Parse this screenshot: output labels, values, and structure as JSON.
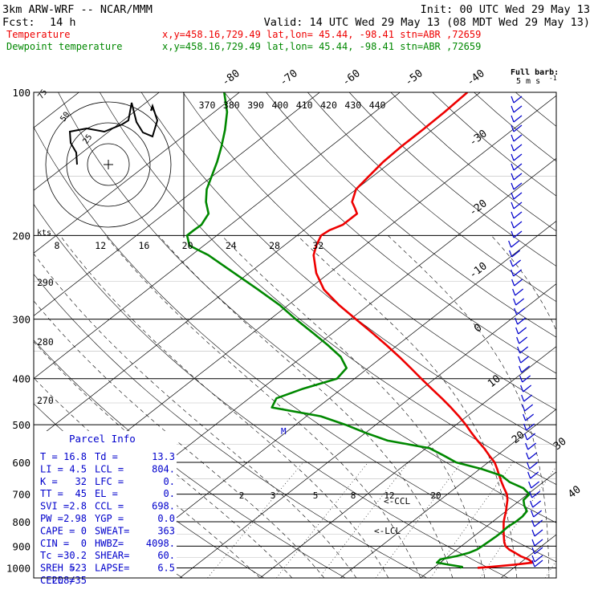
{
  "header": {
    "model": "3km ARW-WRF -- NCAR/MMM",
    "init": "Init: 00 UTC Wed 29 May 13",
    "fcst_label": "Fcst:",
    "fcst_value": "14 h",
    "valid": "Valid: 14 UTC Wed 29 May 13 (08 MDT Wed 29 May 13)",
    "temp_label": "Temperature",
    "temp_loc": "x,y=458.16,729.49   lat,lon= 45.44, -98.41   stn=ABR ,72659",
    "dew_label": "Dewpoint temperature",
    "dew_loc": "x,y=458.16,729.49   lat,lon= 45.44, -98.41   stn=ABR ,72659"
  },
  "colors": {
    "temperature": "#ee0000",
    "dewpoint": "#008800",
    "wind": "#0000cc",
    "frame": "#000000"
  },
  "wind_legend": {
    "title": "Full barb:",
    "units": "5 m s",
    "exp": "-1"
  },
  "parcel": {
    "title": "Parcel Info",
    "rows": [
      {
        "l1": "T  =",
        "v1": "16.8",
        "l2": "Td =",
        "v2": "13.3"
      },
      {
        "l1": "LI =",
        "v1": "4.5",
        "l2": "LCL =",
        "v2": "804."
      },
      {
        "l1": "K  =",
        "v1": "32",
        "l2": "LFC =",
        "v2": "0."
      },
      {
        "l1": "TT =",
        "v1": "45",
        "l2": "EL  =",
        "v2": "0."
      },
      {
        "l1": "SVI =",
        "v1": "2.8",
        "l2": "CCL =",
        "v2": "698."
      },
      {
        "l1": "PW =",
        "v1": "2.98",
        "l2": "YGP =",
        "v2": "0.0"
      },
      {
        "l1": "CAPE =",
        "v1": "0",
        "l2": "SWEAT=",
        "v2": "363"
      },
      {
        "l1": "CIN =",
        "v1": "0",
        "l2": "HWBZ=",
        "v2": "4098."
      },
      {
        "l1": "Tc =",
        "v1": "30.2",
        "l2": "SHEAR=",
        "v2": "60."
      },
      {
        "l1": "SREH =",
        "v1": "523",
        "l2": "LAPSE=",
        "v2": "6.5"
      },
      {
        "l1": "CELL =",
        "v1": "208/35",
        "l2": "",
        "v2": ""
      }
    ]
  },
  "chart_data": {
    "type": "line",
    "ylabel_ticks": [
      "100",
      "200",
      "300",
      "400",
      "500",
      "600",
      "700",
      "800",
      "900",
      "1000"
    ],
    "isotherm_labels": [
      "-80",
      "-70",
      "-60",
      "-50",
      "-40",
      "-30",
      "-20",
      "-10",
      "0",
      "10",
      "20",
      "30",
      "40"
    ],
    "theta_e_labels": [
      "370",
      "380",
      "390",
      "400",
      "410",
      "420",
      "430",
      "440"
    ],
    "mixing_ratio_labels": [
      "2",
      "3",
      "5",
      "8",
      "12",
      "20"
    ],
    "wind_speed_ticks": [
      "8",
      "12",
      "16",
      "20",
      "24",
      "28",
      "32"
    ],
    "adiabat_labels": [
      "290",
      "280",
      "270"
    ],
    "hodograph": {
      "rings": [
        "25",
        "50",
        "75"
      ],
      "units": "kts"
    },
    "markers": {
      "ccl": "CCL",
      "lcl": "LCL",
      "m": "M"
    },
    "series": [
      {
        "name": "Temperature",
        "pressure": [
          1000,
          995,
          985,
          975,
          960,
          945,
          930,
          915,
          900,
          880,
          860,
          840,
          820,
          800,
          780,
          760,
          740,
          720,
          700,
          680,
          660,
          640,
          620,
          600,
          580,
          560,
          540,
          520,
          500,
          480,
          460,
          440,
          420,
          400,
          380,
          360,
          340,
          320,
          300,
          280,
          260,
          240,
          220,
          210,
          200,
          195,
          190,
          180,
          175,
          170,
          160,
          150,
          140,
          130,
          120,
          110,
          100
        ],
        "t": [
          15.5,
          17.0,
          19.5,
          21.5,
          20.5,
          19.0,
          17.8,
          16.5,
          15.5,
          14.6,
          13.8,
          13.0,
          12.2,
          11.4,
          10.7,
          10.0,
          9.2,
          8.4,
          7.4,
          6.1,
          4.8,
          3.5,
          2.2,
          0.8,
          -1.0,
          -2.8,
          -4.8,
          -6.8,
          -8.8,
          -11.0,
          -13.4,
          -16.0,
          -18.8,
          -21.7,
          -24.7,
          -27.9,
          -31.4,
          -35.2,
          -39.3,
          -43.7,
          -48.0,
          -51.6,
          -54.8,
          -56.0,
          -57.0,
          -56.8,
          -56.0,
          -56.0,
          -57.2,
          -58.5,
          -60.0,
          -60.5,
          -61.0,
          -61.2,
          -61.2,
          -61.3,
          -61.6
        ]
      },
      {
        "name": "Dewpoint temperature",
        "pressure": [
          1000,
          995,
          985,
          975,
          960,
          945,
          930,
          915,
          900,
          880,
          860,
          840,
          820,
          800,
          780,
          760,
          740,
          720,
          700,
          680,
          660,
          640,
          620,
          600,
          580,
          560,
          540,
          520,
          500,
          480,
          460,
          440,
          420,
          400,
          380,
          360,
          340,
          320,
          300,
          280,
          260,
          240,
          220,
          210,
          200,
          195,
          190,
          180,
          170,
          160,
          150,
          140,
          130,
          120,
          110,
          100
        ],
        "t": [
          13.3,
          13.4,
          11.5,
          9.6,
          9.5,
          11.0,
          12.0,
          12.5,
          12.6,
          12.7,
          12.8,
          12.8,
          12.7,
          12.9,
          12.9,
          12.6,
          11.4,
          10.4,
          10.2,
          8.5,
          5.8,
          3.8,
          0.3,
          -4.0,
          -6.7,
          -9.6,
          -16.0,
          -20.0,
          -23.8,
          -28.2,
          -35.7,
          -36.6,
          -34.8,
          -32.2,
          -32.7,
          -35.2,
          -38.7,
          -42.6,
          -46.8,
          -51.1,
          -56.2,
          -61.8,
          -67.9,
          -71.8,
          -73.7,
          -73.7,
          -73.6,
          -74.5,
          -76.7,
          -78.6,
          -80.1,
          -81.7,
          -83.6,
          -85.8,
          -88.4,
          -91.9
        ]
      }
    ]
  }
}
